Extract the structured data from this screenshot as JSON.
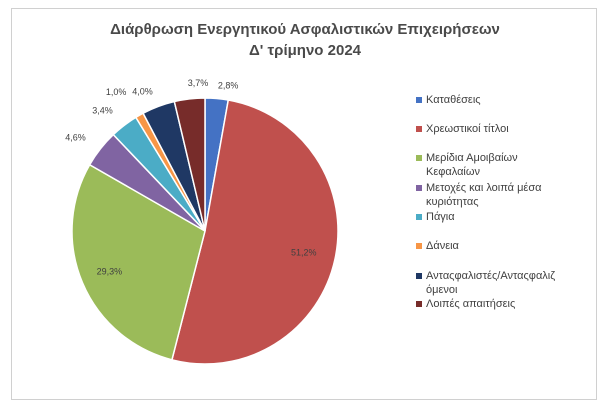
{
  "chart_data": {
    "type": "pie",
    "title_lines": [
      "Διάρθρωση Ενεργητικού Ασφαλιστικών Επιχειρήσεων",
      "Δ' τρίμηνο 2024"
    ],
    "categories": [
      "Καταθέσεις",
      "Χρεωστικοί τίτλοι",
      "Μερίδια Αμοιβαίων Κεφαλαίων",
      "Μετοχές και λοιπά μέσα κυριότητας",
      "Πάγια",
      "Δάνεια",
      "Αντασφαλιστές/Αντασφαλιζόμενοι",
      "Λοιπές απαιτήσεις"
    ],
    "legend_lines": [
      [
        "Καταθέσεις"
      ],
      [
        "Χρεωστικοί τίτλοι"
      ],
      [
        "Μερίδια Αμοιβαίων",
        "Κεφαλαίων"
      ],
      [
        "Μετοχές και λοιπά μέσα",
        "κυριότητας"
      ],
      [
        "Πάγια"
      ],
      [
        "Δάνεια"
      ],
      [
        "Ανταςφαλιστές/Ανταςφαλιζ",
        "όμενοι"
      ],
      [
        "Λοιπές απαιτήσεις"
      ]
    ],
    "values": [
      2.8,
      51.2,
      29.3,
      4.6,
      3.4,
      1.0,
      4.0,
      3.7
    ],
    "data_labels": [
      "2,8%",
      "51,2%",
      "29,3%",
      "4,6%",
      "3,4%",
      "1,0%",
      "4,0%",
      "3,7%"
    ],
    "colors": [
      "#4472c4",
      "#c0504d",
      "#9bbb59",
      "#8064a2",
      "#4bacc6",
      "#f79646",
      "#1f3864",
      "#772c2a"
    ],
    "legend_position": "right"
  }
}
